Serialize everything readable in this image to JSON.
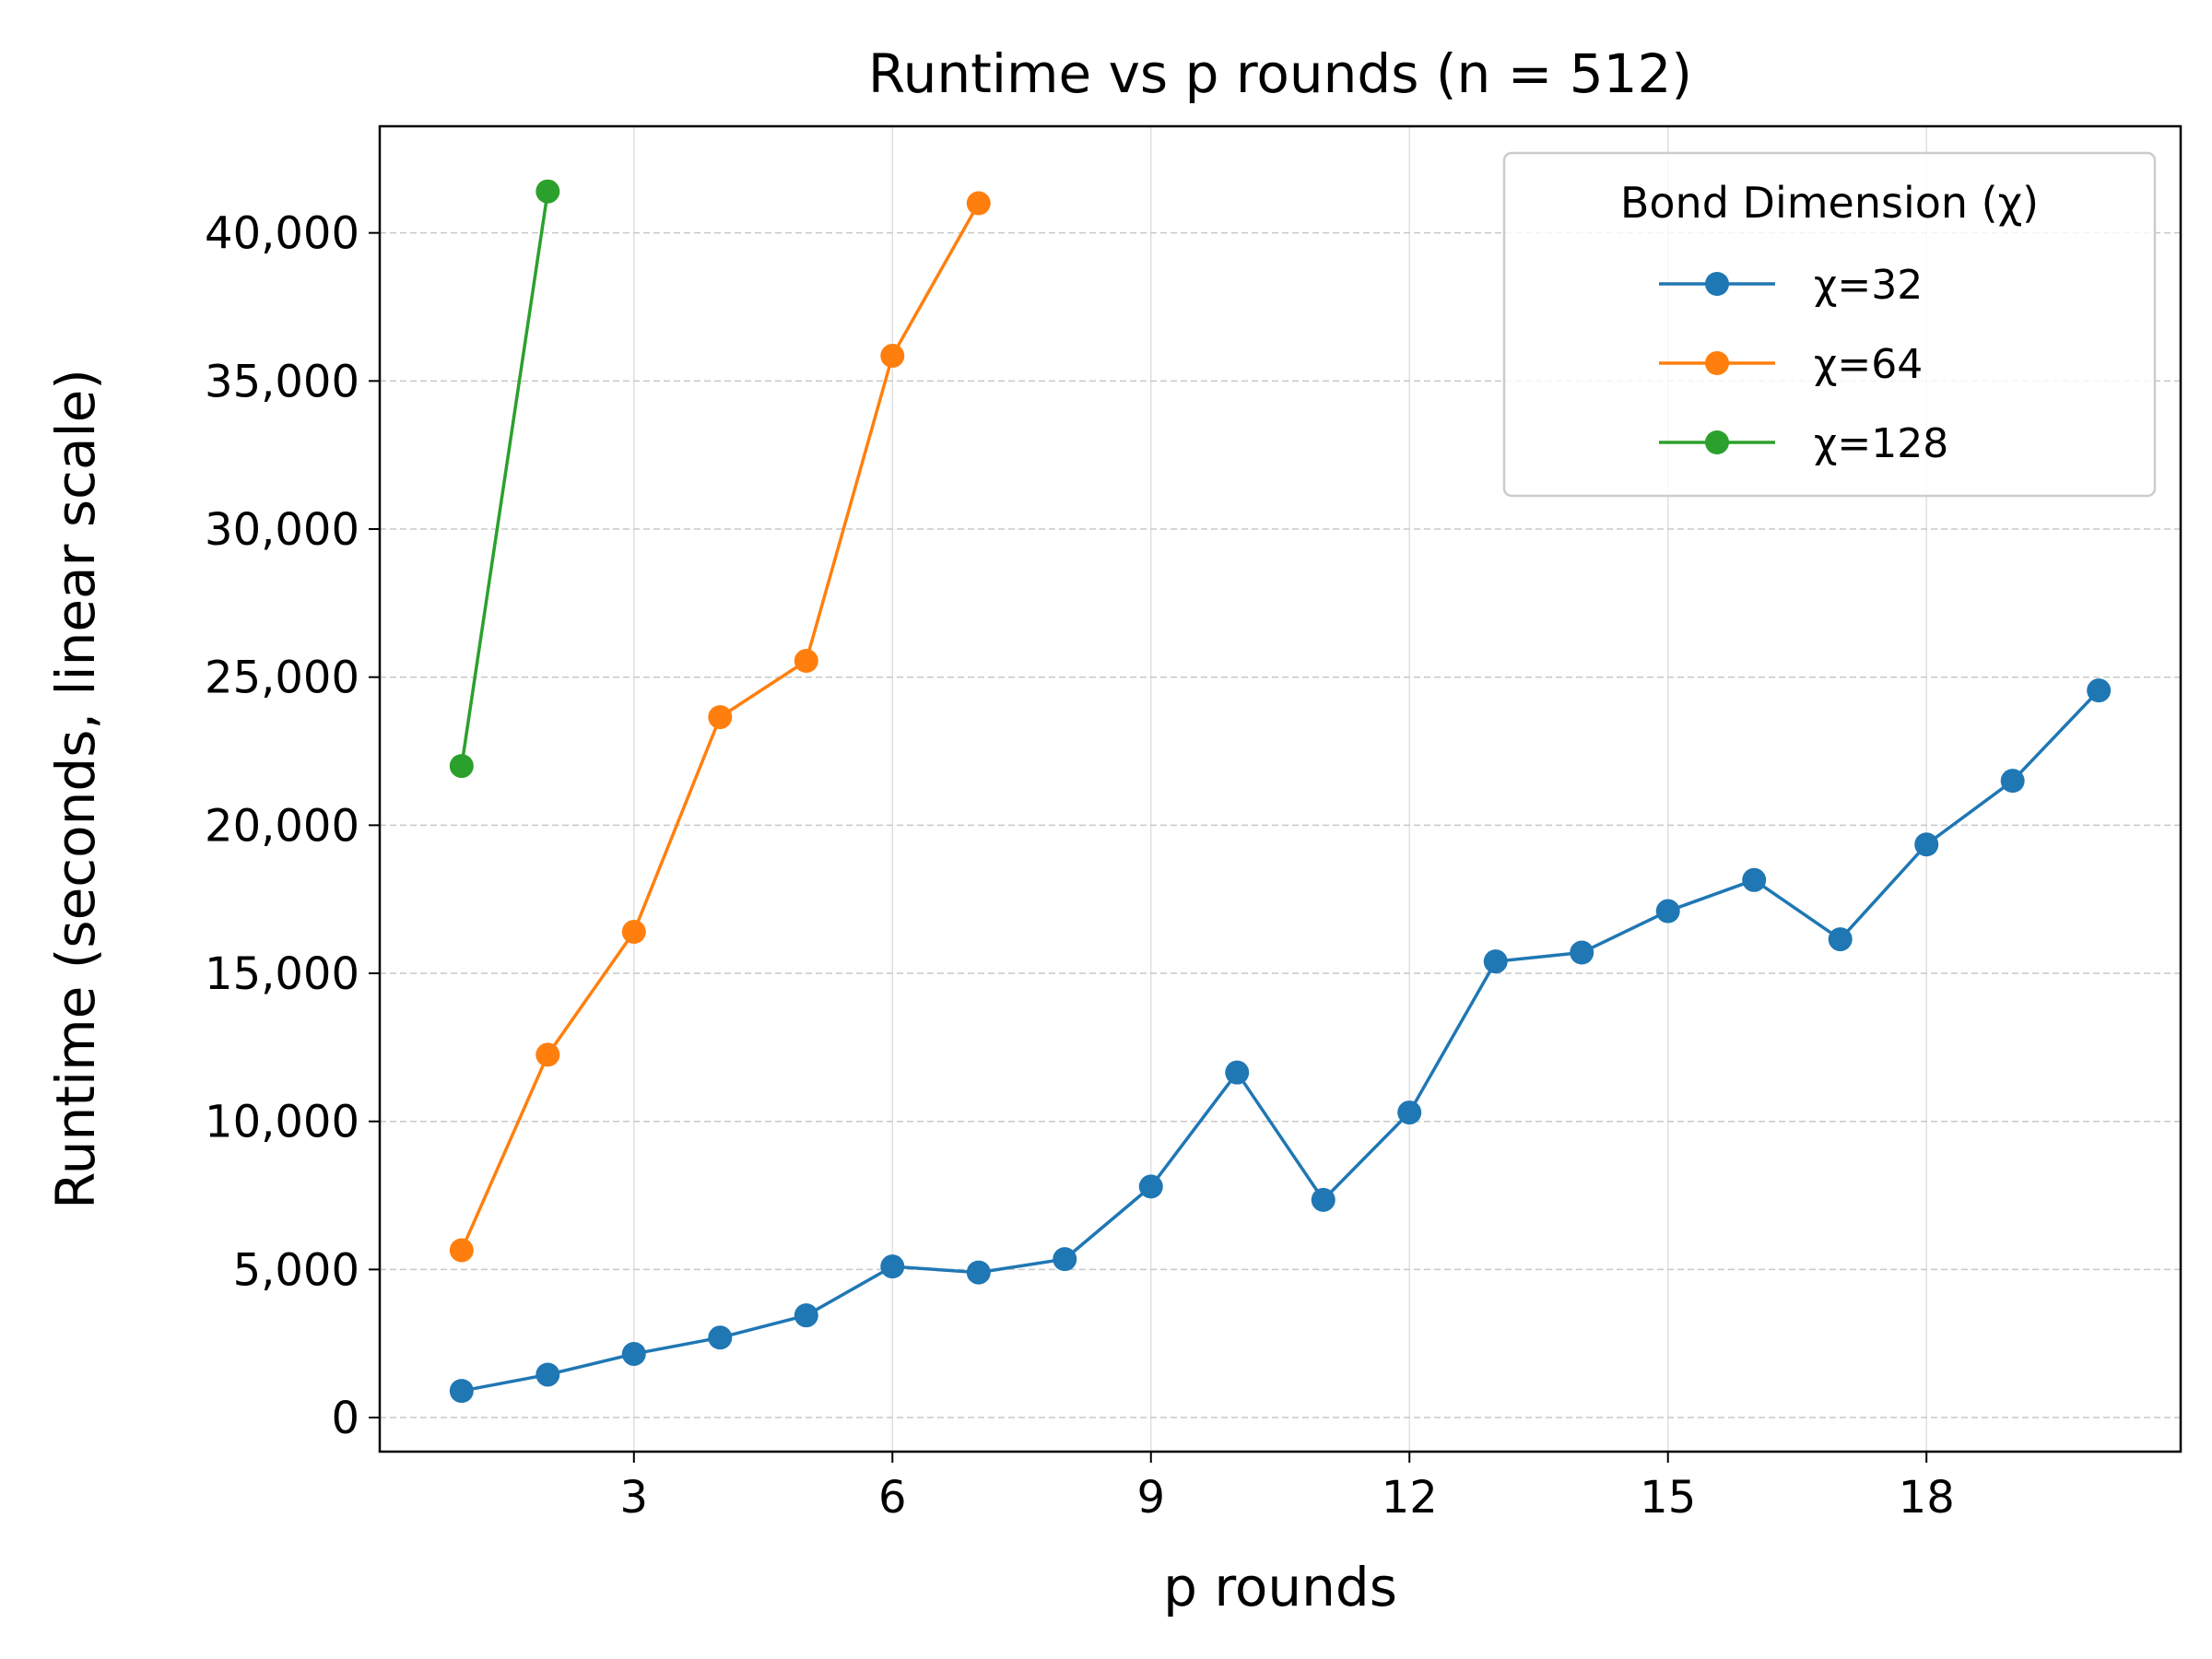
{
  "chart_data": {
    "type": "line",
    "title": "Runtime vs p rounds (n = 512)",
    "xlabel": "p rounds",
    "ylabel": "Runtime (seconds, linear scale)",
    "xlim": [
      0.05,
      20.95
    ],
    "ylim": [
      -1150,
      43600
    ],
    "xticks": [
      3,
      6,
      9,
      12,
      15,
      18
    ],
    "yticks": [
      0,
      5000,
      10000,
      15000,
      20000,
      25000,
      30000,
      35000,
      40000
    ],
    "ytick_labels": [
      "0",
      "5,000",
      "10,000",
      "15,000",
      "20,000",
      "25,000",
      "30,000",
      "35,000",
      "40,000"
    ],
    "grid": true,
    "legend": {
      "title": "Bond Dimension (χ)",
      "placement": "top-right"
    },
    "series": [
      {
        "name": "χ=32",
        "color": "#1f77b4",
        "x": [
          1,
          2,
          3,
          4,
          5,
          6,
          7,
          8,
          9,
          10,
          11,
          12,
          13,
          14,
          15,
          16,
          17,
          18,
          19,
          20
        ],
        "y": [
          900,
          1450,
          2150,
          2700,
          3450,
          5100,
          4900,
          5350,
          7800,
          11650,
          7350,
          10300,
          15400,
          15700,
          17100,
          18150,
          16150,
          19350,
          21500,
          24550
        ]
      },
      {
        "name": "χ=64",
        "color": "#ff7f0e",
        "x": [
          1,
          2,
          3,
          4,
          5,
          6,
          7
        ],
        "y": [
          5650,
          12250,
          16400,
          23650,
          25550,
          35850,
          41000
        ]
      },
      {
        "name": "χ=128",
        "color": "#2ca02c",
        "x": [
          1,
          2
        ],
        "y": [
          22000,
          41400
        ]
      }
    ]
  }
}
